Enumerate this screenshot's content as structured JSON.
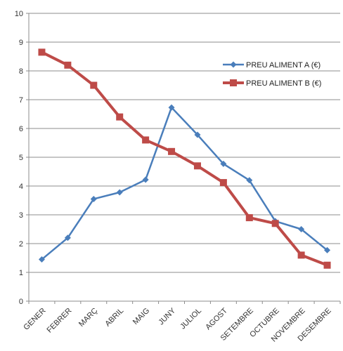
{
  "chart_data": {
    "type": "line",
    "categories": [
      "GENER",
      "FEBRER",
      "MARÇ",
      "ABRIL",
      "MAIG",
      "JUNY",
      "JULIOL",
      "AGOST",
      "SETEMBRE",
      "OCTUBRE",
      "NOVEMBRE",
      "DESEMBRE"
    ],
    "series": [
      {
        "name": "PREU ALIMENT A (€)",
        "color": "#4a7ebb",
        "marker": "diamond",
        "values": [
          1.45,
          2.2,
          3.55,
          3.78,
          4.22,
          6.73,
          5.78,
          4.77,
          4.2,
          2.78,
          2.5,
          1.77
        ]
      },
      {
        "name": "PREU ALIMENT B (€)",
        "color": "#be4b48",
        "marker": "square",
        "values": [
          8.65,
          8.2,
          7.5,
          6.4,
          5.6,
          5.2,
          4.7,
          4.12,
          2.9,
          2.7,
          1.6,
          1.25
        ]
      }
    ],
    "ylim": [
      0,
      10
    ],
    "yticks": [
      "0",
      "1",
      "2",
      "3",
      "4",
      "5",
      "6",
      "7",
      "8",
      "9",
      "10"
    ],
    "grid": "horizontal",
    "legend": "right"
  }
}
